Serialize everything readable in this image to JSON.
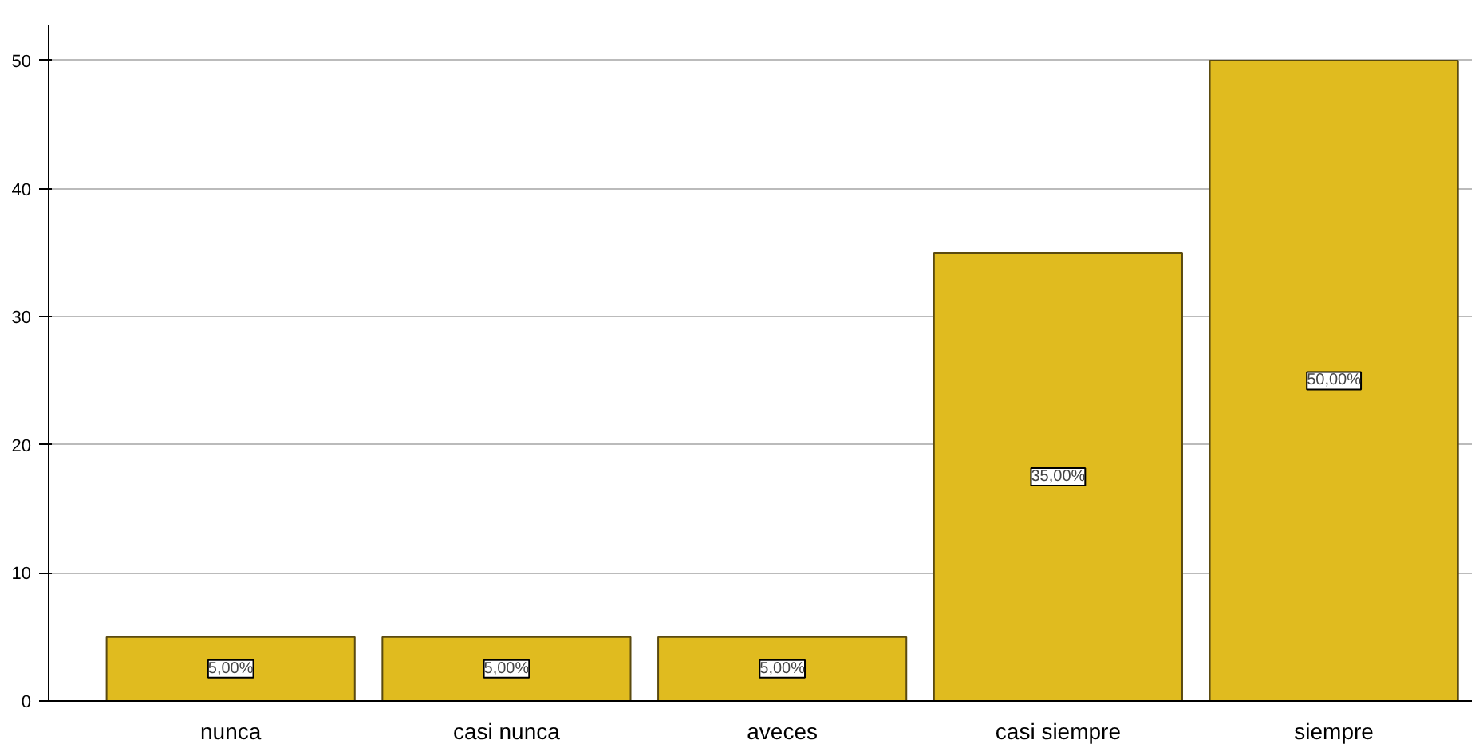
{
  "chart_data": {
    "type": "bar",
    "categories": [
      "nunca",
      "casi nunca",
      "aveces",
      "casi siempre",
      "siempre"
    ],
    "values": [
      5,
      5,
      5,
      35,
      50
    ],
    "value_labels": [
      "5,00%",
      "5,00%",
      "5,00%",
      "35,00%",
      "50,00%"
    ],
    "color": "#e0bb1f",
    "ylim": [
      0,
      52.8
    ],
    "yticks": [
      0,
      10,
      20,
      30,
      40,
      50
    ],
    "grid": "y"
  }
}
